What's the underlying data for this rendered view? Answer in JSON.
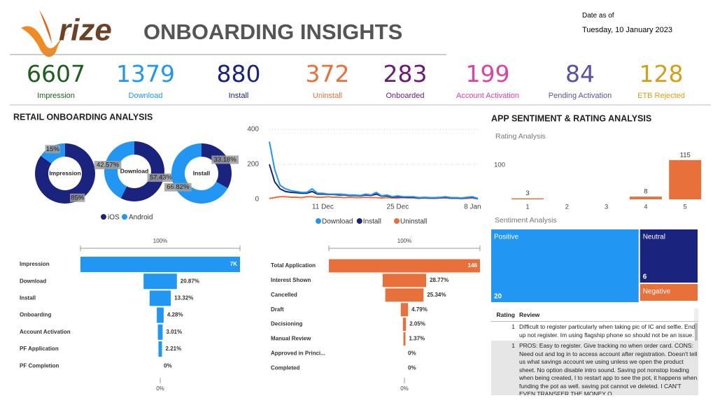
{
  "header": {
    "logo": "rize",
    "title": "ONBOARDING INSIGHTS",
    "date_label": "Date as of",
    "date": "Tuesday, 10 January 2023"
  },
  "kpis": [
    {
      "value": "6607",
      "label": "Impression",
      "color": "#1e5e1e"
    },
    {
      "value": "1379",
      "label": "Download",
      "color": "#2196f3"
    },
    {
      "value": "880",
      "label": "Install",
      "color": "#1a237e"
    },
    {
      "value": "372",
      "label": "Uninstall",
      "color": "#e8703a"
    },
    {
      "value": "283",
      "label": "Onboarded",
      "color": "#6a1b7a"
    },
    {
      "value": "199",
      "label": "Account Activation",
      "color": "#e040a0"
    },
    {
      "value": "84",
      "label": "Pending Activation",
      "color": "#5e4fa2"
    },
    {
      "value": "128",
      "label": "ETB Rejected",
      "color": "#d4a017"
    }
  ],
  "sections": [
    "RETAIL ONBOARDING ANALYSIS",
    "APP SENTIMENT & RATING ANALYSIS"
  ],
  "chart_data": [
    {
      "type": "donut",
      "categories": [
        "Impression",
        "Download",
        "Install"
      ],
      "series": [
        {
          "name": "iOS",
          "color": "#1a237e",
          "values": [
            85,
            57.43,
            33.18
          ],
          "value_labels": [
            "85%",
            "57.43%",
            "33.18%"
          ]
        },
        {
          "name": "Android",
          "color": "#2196f3",
          "values": [
            15,
            42.57,
            66.82
          ],
          "value_labels": [
            "15%",
            "42.57%",
            "66.82%"
          ]
        }
      ]
    },
    {
      "type": "line",
      "categories": [
        null,
        null,
        null,
        null,
        null,
        null,
        null,
        null,
        null,
        null,
        "11 Dec",
        null,
        null,
        null,
        null,
        null,
        null,
        null,
        null,
        null,
        null,
        null,
        null,
        null,
        "25 Dec",
        null,
        null,
        null,
        null,
        null,
        null,
        null,
        null,
        null,
        null,
        null,
        null,
        null,
        "8 Jan",
        null
      ],
      "ylim": [
        0,
        400
      ],
      "yticks": [
        0,
        200,
        400
      ],
      "grid": true,
      "series": [
        {
          "name": "Download",
          "color": "#2196f3",
          "values": [
            330,
            170,
            80,
            60,
            50,
            45,
            40,
            40,
            60,
            35,
            35,
            30,
            30,
            30,
            28,
            25,
            25,
            22,
            30,
            25,
            40,
            20,
            25,
            15,
            20,
            15,
            15,
            15,
            10,
            12,
            10,
            10,
            12,
            15,
            10,
            10,
            8,
            12,
            15,
            5
          ]
        },
        {
          "name": "Install",
          "color": "#1a237e",
          "values": [
            200,
            100,
            60,
            45,
            40,
            38,
            35,
            35,
            45,
            30,
            30,
            28,
            28,
            25,
            25,
            22,
            22,
            20,
            25,
            22,
            30,
            18,
            20,
            12,
            15,
            12,
            12,
            12,
            8,
            10,
            8,
            8,
            10,
            12,
            8,
            8,
            6,
            10,
            12,
            4
          ]
        },
        {
          "name": "Uninstall",
          "color": "#e8703a",
          "values": [
            5,
            10,
            15,
            15,
            12,
            12,
            10,
            15,
            15,
            12,
            12,
            15,
            12,
            12,
            10,
            12,
            10,
            10,
            12,
            10,
            10,
            8,
            10,
            8,
            8,
            10,
            8,
            8,
            6,
            8,
            6,
            6,
            8,
            8,
            6,
            6,
            5,
            6,
            8,
            3
          ]
        }
      ]
    },
    {
      "type": "funnel",
      "color": "#2196f3",
      "top_label": "100%",
      "bottom_label": "0%",
      "categories": [
        "Impression",
        "Download",
        "Install",
        "Onboarding",
        "Account Activation",
        "PF Application",
        "PF Completion"
      ],
      "values": [
        6607,
        1379,
        880,
        283,
        199,
        146,
        0
      ],
      "value_labels": [
        "7K",
        "20.87%",
        "13.32%",
        "4.28%",
        "3.01%",
        "2.21%",
        "0%"
      ]
    },
    {
      "type": "funnel",
      "color": "#e8703a",
      "top_label": "100%",
      "bottom_label": "0%",
      "categories": [
        "Total Application",
        "Interest Shown",
        "Cancelled",
        "Draft",
        "Decisioning",
        "Manual Review",
        "Approved in Princi...",
        "Completed"
      ],
      "values": [
        146,
        42,
        37,
        7,
        3,
        2,
        0,
        0
      ],
      "value_labels": [
        "146",
        "28.77%",
        "25.34%",
        "4.79%",
        "2.05%",
        "1.37%",
        "0%",
        "0%"
      ]
    },
    {
      "type": "bar",
      "title": "Rating Analysis",
      "color": "#e8703a",
      "categories": [
        "1",
        "2",
        "3",
        "4",
        "5"
      ],
      "values": [
        3,
        null,
        null,
        8,
        115
      ],
      "ylim": [
        0,
        125
      ],
      "yticks": [
        100
      ]
    },
    {
      "type": "treemap",
      "title": "Sentiment Analysis",
      "categories": [
        "Positive",
        "Neutral",
        "Negative"
      ],
      "values": [
        20,
        6,
        2
      ],
      "colors": [
        "#2196f3",
        "#1a237e",
        "#e8703a"
      ]
    }
  ],
  "table": {
    "columns": [
      "Rating",
      "Review"
    ],
    "rows": [
      [
        1,
        "Difficult to register particularly when taking pic of IC and selfie. End up not register. Im using flagship phone so should not be an issue."
      ],
      [
        1,
        "PROS: Easy to register. Give tracking no when order card. CONS: Need out and log in to access account after registration. Doesn't tell us what savings account we using unless we open the product sheet. No option disable intro sound. Saving pot nonstop loading when being created, I to restart app to see the pot, it happens when funding the pot as well. saving pot cannot ve deleted. I CAN'T EVEN TRANSFER THE MONEY O..."
      ]
    ]
  }
}
